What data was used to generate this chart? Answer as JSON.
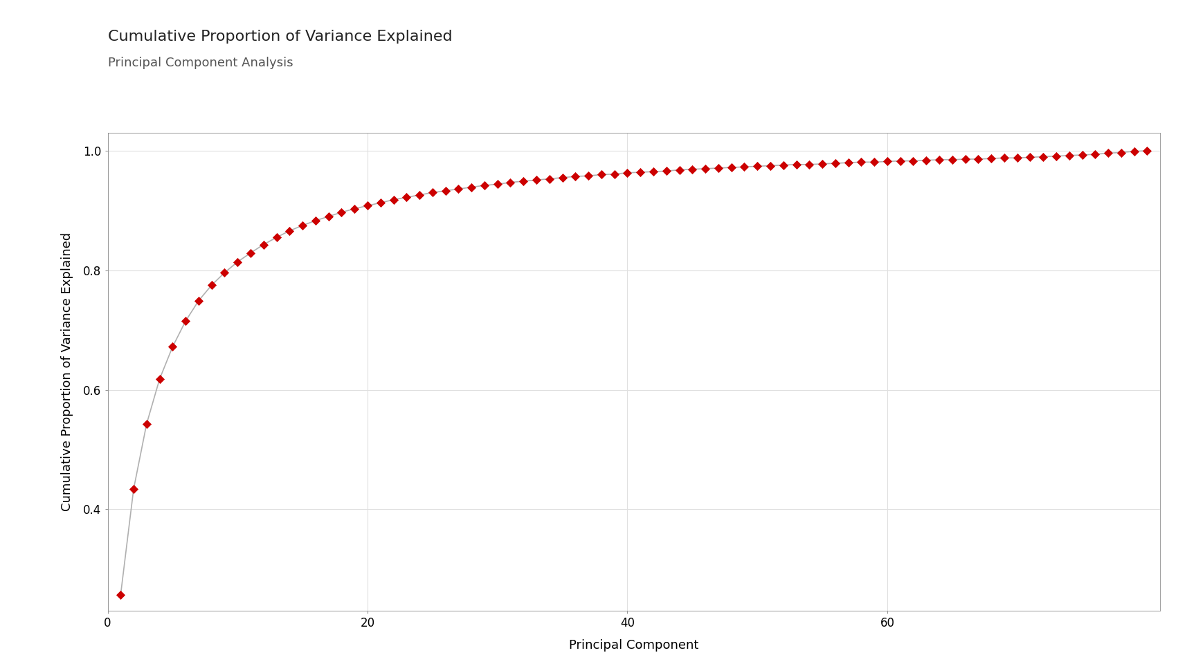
{
  "title": "Cumulative Proportion of Variance Explained",
  "subtitle": "Principal Component Analysis",
  "xlabel": "Principal Component",
  "ylabel": "Cumulative Proportion of Variance Explained",
  "line_color": "#b0b0b0",
  "marker_color": "#cc0000",
  "background_color": "#ffffff",
  "panel_background": "#ffffff",
  "grid_color": "#e0e0e0",
  "ylim": [
    0.23,
    1.03
  ],
  "xlim": [
    0,
    81
  ],
  "yticks": [
    0.4,
    0.6,
    0.8,
    1.0
  ],
  "xticks": [
    0,
    20,
    40,
    60
  ],
  "title_fontsize": 16,
  "subtitle_fontsize": 13,
  "axis_label_fontsize": 13,
  "tick_fontsize": 12,
  "n_components": 80,
  "cumvar": [
    0.257,
    0.434,
    0.543,
    0.618,
    0.672,
    0.715,
    0.749,
    0.775,
    0.796,
    0.814,
    0.829,
    0.843,
    0.855,
    0.866,
    0.875,
    0.883,
    0.89,
    0.897,
    0.903,
    0.908,
    0.913,
    0.918,
    0.922,
    0.926,
    0.93,
    0.933,
    0.936,
    0.939,
    0.942,
    0.944,
    0.947,
    0.949,
    0.951,
    0.953,
    0.955,
    0.957,
    0.958,
    0.96,
    0.961,
    0.963,
    0.964,
    0.965,
    0.966,
    0.968,
    0.969,
    0.97,
    0.971,
    0.972,
    0.973,
    0.974,
    0.975,
    0.976,
    0.977,
    0.977,
    0.978,
    0.979,
    0.98,
    0.981,
    0.981,
    0.982,
    0.983,
    0.983,
    0.984,
    0.985,
    0.985,
    0.986,
    0.986,
    0.987,
    0.988,
    0.988,
    0.989,
    0.99,
    0.991,
    0.992,
    0.993,
    0.994,
    0.996,
    0.997,
    0.999,
    1.0
  ]
}
